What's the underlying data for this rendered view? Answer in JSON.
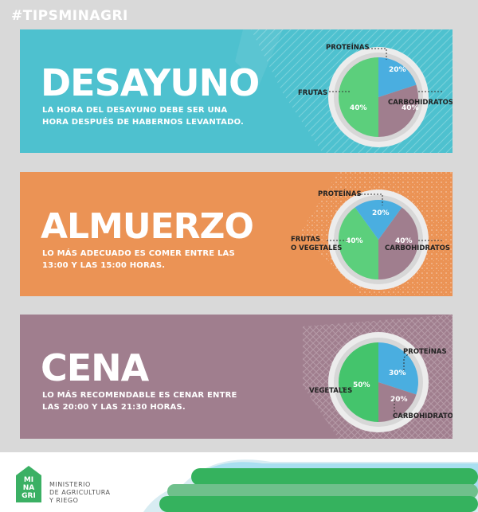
{
  "hashtag": "#TIPSMINAGRI",
  "colors": {
    "desayuno": "#4ec1cf",
    "almuerzo": "#eb9355",
    "cena": "#a07e8e",
    "protein": "#4aaee0",
    "carbs": "#a07e8e",
    "fruits": "#5ccf7c",
    "veg": "#44c46c",
    "ring": "#e2e2e2"
  },
  "meals": {
    "desayuno": {
      "title": "DESAYUNO",
      "desc_line1": "LA HORA DEL DESAYUNO DEBE SER UNA",
      "desc_line2": "HORA DESPUÉS DE HABERNOS LEVANTADO.",
      "chart": {
        "proteinas_label": "PROTEÍNAS",
        "carbs_label": "CARBOHIDRATOS",
        "fruits_label": "FRUTAS",
        "proteinas_pct": "20%",
        "carbs_pct": "40%",
        "fruits_pct": "40%"
      }
    },
    "almuerzo": {
      "title": "ALMUERZO",
      "desc_line1": "LO MÁS ADECUADO ES COMER ENTRE LAS",
      "desc_line2": "13:00 Y LAS 15:00 HORAS.",
      "chart": {
        "proteinas_label": "PROTEÍNAS",
        "carbs_label": "CARBOHIDRATOS",
        "fruits_label_1": "FRUTAS",
        "fruits_label_2": "O VEGETALES",
        "proteinas_pct": "20%",
        "carbs_pct": "40%",
        "fruits_pct": "40%"
      }
    },
    "cena": {
      "title": "CENA",
      "desc_line1": "LO MÁS RECOMENDABLE ES CENAR ENTRE",
      "desc_line2": "LAS 20:00 Y LAS 21:30 HORAS.",
      "chart": {
        "proteinas_label": "PROTEÍNAS",
        "carbs_label": "CARBOHIDRATOS",
        "veg_label": "VEGETALES",
        "proteinas_pct": "30%",
        "carbs_pct": "20%",
        "veg_pct": "50%"
      }
    }
  },
  "footer": {
    "logo_line1": "MI",
    "logo_line2": "NA",
    "logo_line3": "GRI",
    "ministry_line1": "MINISTERIO",
    "ministry_line2": "DE AGRICULTURA",
    "ministry_line3": "Y RIEGO"
  }
}
